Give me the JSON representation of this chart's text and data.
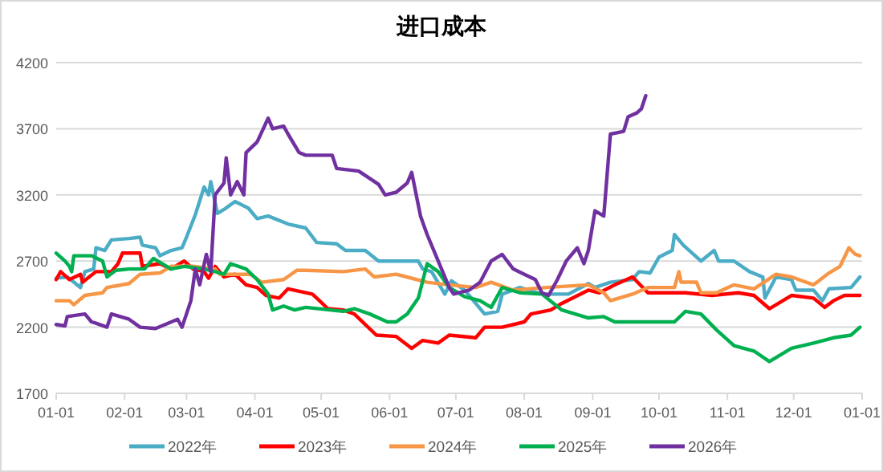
{
  "chart_data": {
    "type": "line",
    "title": "进口成本",
    "xlim": [
      "2025-01-01",
      "2026-01-01"
    ],
    "xticks": [
      {
        "value": "2025-01-01",
        "label": "01-01"
      },
      {
        "value": "2025-02-01",
        "label": "02-01"
      },
      {
        "value": "2025-03-01",
        "label": "03-01"
      },
      {
        "value": "2025-04-01",
        "label": "04-01"
      },
      {
        "value": "2025-05-01",
        "label": "05-01"
      },
      {
        "value": "2025-06-01",
        "label": "06-01"
      },
      {
        "value": "2025-07-01",
        "label": "07-01"
      },
      {
        "value": "2025-08-01",
        "label": "08-01"
      },
      {
        "value": "2025-09-01",
        "label": "09-01"
      },
      {
        "value": "2025-10-01",
        "label": "10-01"
      },
      {
        "value": "2025-11-01",
        "label": "11-01"
      },
      {
        "value": "2025-12-01",
        "label": "12-01"
      },
      {
        "value": "2026-01-01",
        "label": "01-01"
      }
    ],
    "ylim": [
      1700,
      4200
    ],
    "yticks": [
      1700,
      2200,
      2700,
      3200,
      3700,
      4200
    ],
    "grid": "y",
    "legend": "bottom",
    "marker": "none",
    "line_style": "solid",
    "series": [
      {
        "name": "2022年",
        "color": "#4bacc6",
        "x": [
          "2025-01-01",
          "2025-01-06",
          "2025-01-09",
          "2025-01-12",
          "2025-01-14",
          "2025-01-18",
          "2025-01-19",
          "2025-01-23",
          "2025-01-26",
          "2025-02-03",
          "2025-02-08",
          "2025-02-09",
          "2025-02-15",
          "2025-02-17",
          "2025-02-22",
          "2025-02-27",
          "2025-03-01",
          "2025-03-05",
          "2025-03-09",
          "2025-03-11",
          "2025-03-12",
          "2025-03-15",
          "2025-03-18",
          "2025-03-23",
          "2025-03-29",
          "2025-04-02",
          "2025-04-07",
          "2025-04-16",
          "2025-04-24",
          "2025-04-29",
          "2025-05-08",
          "2025-05-12",
          "2025-05-21",
          "2025-05-27",
          "2025-06-04",
          "2025-06-14",
          "2025-06-16",
          "2025-06-20",
          "2025-06-26",
          "2025-06-29",
          "2025-07-05",
          "2025-07-14",
          "2025-07-20",
          "2025-07-22",
          "2025-07-30",
          "2025-08-09",
          "2025-08-21",
          "2025-08-30",
          "2025-09-02",
          "2025-09-09",
          "2025-09-19",
          "2025-09-22",
          "2025-09-27",
          "2025-10-01",
          "2025-10-07",
          "2025-10-08",
          "2025-10-12",
          "2025-10-20",
          "2025-10-26",
          "2025-10-28",
          "2025-11-04",
          "2025-11-11",
          "2025-11-17",
          "2025-11-18",
          "2025-11-23",
          "2025-11-30",
          "2025-12-02",
          "2025-12-10",
          "2025-12-14",
          "2025-12-17",
          "2025-12-27",
          "2025-12-31"
        ],
        "values": [
          2570,
          2580,
          2540,
          2500,
          2620,
          2640,
          2800,
          2780,
          2860,
          2870,
          2880,
          2820,
          2800,
          2740,
          2780,
          2800,
          2880,
          3050,
          3260,
          3200,
          3300,
          3060,
          3090,
          3150,
          3100,
          3020,
          3040,
          2980,
          2950,
          2840,
          2830,
          2780,
          2780,
          2700,
          2700,
          2700,
          2640,
          2620,
          2450,
          2550,
          2480,
          2300,
          2320,
          2450,
          2500,
          2450,
          2450,
          2530,
          2500,
          2540,
          2560,
          2620,
          2610,
          2730,
          2780,
          2900,
          2820,
          2700,
          2780,
          2700,
          2700,
          2620,
          2580,
          2420,
          2580,
          2560,
          2480,
          2480,
          2400,
          2490,
          2500,
          2580
        ]
      },
      {
        "name": "2023年",
        "color": "#ff0000",
        "x": [
          "2025-01-01",
          "2025-01-03",
          "2025-01-07",
          "2025-01-12",
          "2025-01-13",
          "2025-01-19",
          "2025-01-26",
          "2025-01-29",
          "2025-01-31",
          "2025-02-08",
          "2025-02-09",
          "2025-02-17",
          "2025-02-22",
          "2025-02-28",
          "2025-03-04",
          "2025-03-09",
          "2025-03-11",
          "2025-03-14",
          "2025-03-18",
          "2025-03-23",
          "2025-03-28",
          "2025-04-02",
          "2025-04-06",
          "2025-04-12",
          "2025-04-16",
          "2025-04-27",
          "2025-04-29",
          "2025-05-04",
          "2025-05-11",
          "2025-05-16",
          "2025-05-26",
          "2025-06-04",
          "2025-06-11",
          "2025-06-16",
          "2025-06-23",
          "2025-06-28",
          "2025-07-10",
          "2025-07-14",
          "2025-07-22",
          "2025-08-01",
          "2025-08-04",
          "2025-08-13",
          "2025-08-18",
          "2025-08-30",
          "2025-09-04",
          "2025-09-11",
          "2025-09-19",
          "2025-09-26",
          "2025-10-13",
          "2025-10-25",
          "2025-11-06",
          "2025-11-13",
          "2025-11-20",
          "2025-11-30",
          "2025-12-10",
          "2025-12-15",
          "2025-12-19",
          "2025-12-24",
          "2025-12-31"
        ],
        "values": [
          2560,
          2620,
          2560,
          2600,
          2540,
          2620,
          2620,
          2680,
          2760,
          2760,
          2660,
          2680,
          2640,
          2700,
          2640,
          2620,
          2570,
          2660,
          2580,
          2600,
          2520,
          2500,
          2440,
          2420,
          2490,
          2450,
          2420,
          2340,
          2330,
          2300,
          2140,
          2130,
          2040,
          2100,
          2080,
          2140,
          2120,
          2200,
          2200,
          2240,
          2300,
          2330,
          2380,
          2480,
          2460,
          2520,
          2580,
          2460,
          2460,
          2440,
          2460,
          2440,
          2340,
          2440,
          2420,
          2350,
          2400,
          2440,
          2440
        ]
      },
      {
        "name": "2024年",
        "color": "#f79646",
        "x": [
          "2025-01-01",
          "2025-01-07",
          "2025-01-09",
          "2025-01-14",
          "2025-01-22",
          "2025-01-24",
          "2025-02-03",
          "2025-02-08",
          "2025-02-17",
          "2025-02-22",
          "2025-03-04",
          "2025-03-14",
          "2025-03-16",
          "2025-03-23",
          "2025-03-30",
          "2025-04-04",
          "2025-04-14",
          "2025-04-20",
          "2025-04-24",
          "2025-05-11",
          "2025-05-21",
          "2025-05-25",
          "2025-06-04",
          "2025-06-18",
          "2025-06-28",
          "2025-07-10",
          "2025-07-17",
          "2025-07-27",
          "2025-08-11",
          "2025-08-30",
          "2025-09-06",
          "2025-09-09",
          "2025-09-19",
          "2025-09-26",
          "2025-10-08",
          "2025-10-10",
          "2025-10-11",
          "2025-10-18",
          "2025-10-20",
          "2025-10-27",
          "2025-11-04",
          "2025-11-13",
          "2025-11-23",
          "2025-11-30",
          "2025-12-10",
          "2025-12-17",
          "2025-12-22",
          "2025-12-26",
          "2025-12-29",
          "2025-12-31"
        ],
        "values": [
          2400,
          2400,
          2370,
          2440,
          2460,
          2500,
          2530,
          2600,
          2610,
          2660,
          2660,
          2640,
          2600,
          2600,
          2600,
          2540,
          2560,
          2630,
          2630,
          2620,
          2640,
          2580,
          2600,
          2540,
          2520,
          2500,
          2540,
          2480,
          2500,
          2520,
          2460,
          2400,
          2450,
          2500,
          2500,
          2620,
          2540,
          2540,
          2460,
          2460,
          2520,
          2490,
          2600,
          2580,
          2520,
          2610,
          2660,
          2800,
          2750,
          2740
        ]
      },
      {
        "name": "2025年",
        "color": "#00b050",
        "x": [
          "2025-01-01",
          "2025-01-05",
          "2025-01-07",
          "2025-01-08",
          "2025-01-09",
          "2025-01-17",
          "2025-01-22",
          "2025-01-24",
          "2025-01-28",
          "2025-02-03",
          "2025-02-10",
          "2025-02-14",
          "2025-02-22",
          "2025-02-28",
          "2025-03-09",
          "2025-03-14",
          "2025-03-18",
          "2025-03-21",
          "2025-03-28",
          "2025-04-02",
          "2025-04-07",
          "2025-04-09",
          "2025-04-14",
          "2025-04-19",
          "2025-04-24",
          "2025-05-11",
          "2025-05-16",
          "2025-05-23",
          "2025-05-31",
          "2025-06-04",
          "2025-06-09",
          "2025-06-14",
          "2025-06-18",
          "2025-06-23",
          "2025-06-28",
          "2025-07-05",
          "2025-07-12",
          "2025-07-17",
          "2025-07-22",
          "2025-07-30",
          "2025-08-09",
          "2025-08-18",
          "2025-08-30",
          "2025-09-06",
          "2025-09-11",
          "2025-10-08",
          "2025-10-13",
          "2025-10-20",
          "2025-10-27",
          "2025-11-04",
          "2025-11-13",
          "2025-11-20",
          "2025-11-30",
          "2025-12-10",
          "2025-12-19",
          "2025-12-27",
          "2025-12-31"
        ],
        "values": [
          2760,
          2700,
          2660,
          2620,
          2740,
          2740,
          2700,
          2580,
          2630,
          2640,
          2640,
          2720,
          2640,
          2660,
          2640,
          2620,
          2600,
          2680,
          2640,
          2560,
          2450,
          2330,
          2360,
          2330,
          2350,
          2320,
          2340,
          2300,
          2240,
          2240,
          2300,
          2420,
          2680,
          2620,
          2500,
          2430,
          2400,
          2350,
          2500,
          2460,
          2450,
          2330,
          2270,
          2280,
          2240,
          2240,
          2320,
          2300,
          2180,
          2060,
          2020,
          1940,
          2040,
          2080,
          2120,
          2140,
          2200
        ]
      },
      {
        "name": "2026年",
        "color": "#7030a0",
        "x": [
          "2025-01-01",
          "2025-01-05",
          "2025-01-06",
          "2025-01-14",
          "2025-01-17",
          "2025-01-19",
          "2025-01-24",
          "2025-01-26",
          "2025-02-03",
          "2025-02-08",
          "2025-02-15",
          "2025-02-25",
          "2025-02-27",
          "2025-03-03",
          "2025-03-05",
          "2025-03-07",
          "2025-03-10",
          "2025-03-12",
          "2025-03-14",
          "2025-03-18",
          "2025-03-19",
          "2025-03-21",
          "2025-03-24",
          "2025-03-27",
          "2025-03-28",
          "2025-04-02",
          "2025-04-07",
          "2025-04-09",
          "2025-04-14",
          "2025-04-16",
          "2025-04-21",
          "2025-04-24",
          "2025-05-06",
          "2025-05-08",
          "2025-05-18",
          "2025-05-27",
          "2025-05-30",
          "2025-06-04",
          "2025-06-09",
          "2025-06-11",
          "2025-06-15",
          "2025-06-18",
          "2025-06-23",
          "2025-06-28",
          "2025-06-30",
          "2025-07-07",
          "2025-07-12",
          "2025-07-17",
          "2025-07-22",
          "2025-07-27",
          "2025-08-01",
          "2025-08-06",
          "2025-08-09",
          "2025-08-12",
          "2025-08-16",
          "2025-08-20",
          "2025-08-25",
          "2025-08-28",
          "2025-08-30",
          "2025-09-02",
          "2025-09-06",
          "2025-09-09",
          "2025-09-15",
          "2025-09-17",
          "2025-09-21",
          "2025-09-23",
          "2025-09-25"
        ],
        "values": [
          2220,
          2210,
          2280,
          2300,
          2240,
          2230,
          2200,
          2300,
          2260,
          2200,
          2190,
          2260,
          2200,
          2400,
          2640,
          2520,
          2750,
          2620,
          3200,
          3290,
          3480,
          3200,
          3300,
          3200,
          3520,
          3600,
          3780,
          3700,
          3720,
          3660,
          3520,
          3500,
          3500,
          3400,
          3380,
          3280,
          3200,
          3220,
          3290,
          3370,
          3040,
          2900,
          2700,
          2500,
          2450,
          2480,
          2540,
          2700,
          2750,
          2640,
          2600,
          2560,
          2460,
          2440,
          2560,
          2700,
          2800,
          2680,
          2780,
          3080,
          3040,
          3660,
          3680,
          3790,
          3820,
          3850,
          3950
        ]
      }
    ]
  }
}
